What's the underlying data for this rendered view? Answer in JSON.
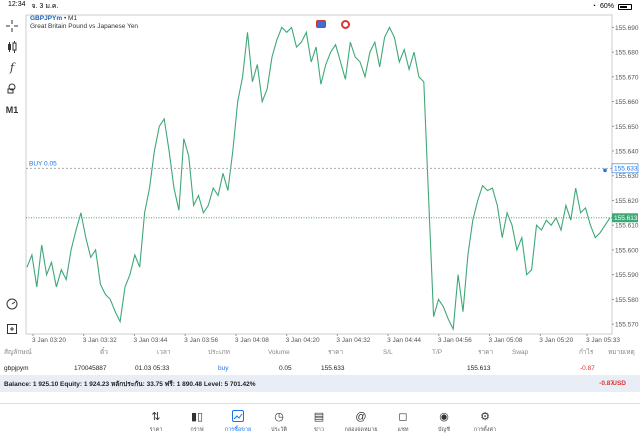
{
  "status": {
    "time": "12:34",
    "date": "จ. 3 ม.ค.",
    "battery": "60%"
  },
  "chart": {
    "symbol": "GBPJPYm",
    "timeframe": "• M1",
    "description": "Great Britain Pound vs Japanese Yen",
    "buy_label": "BUY 0.05",
    "current_price_label": "155.613",
    "buy_price_label": "155.633",
    "price_levels": [
      "155.690",
      "155.680",
      "155.670",
      "155.660",
      "155.650",
      "155.640",
      "155.630",
      "155.620",
      "155.610",
      "155.600",
      "155.590",
      "155.580",
      "155.570"
    ],
    "time_labels": [
      "3 Jan 03:20",
      "3 Jan 03:32",
      "3 Jan 03:44",
      "3 Jan 03:56",
      "3 Jan 04:08",
      "3 Jan 04:20",
      "3 Jan 04:32",
      "3 Jan 04:44",
      "3 Jan 04:56",
      "3 Jan 05:08",
      "3 Jan 05:20",
      "3 Jan 05:33"
    ],
    "timeframe_button": "M1",
    "line_color": "#3fa877",
    "buy_line_color": "#1a73e8"
  },
  "chart_data": {
    "type": "line",
    "ylim": [
      155.566,
      155.695
    ],
    "current_price": 155.613,
    "buy_price": 155.633,
    "series": [
      {
        "values": [
          155.593,
          155.598,
          155.585,
          155.602,
          155.59,
          155.595,
          155.585,
          155.592,
          155.588,
          155.6,
          155.608,
          155.615,
          155.605,
          155.597,
          155.6,
          155.586,
          155.582,
          155.58,
          155.575,
          155.571,
          155.585,
          155.59,
          155.598,
          155.593,
          155.615,
          155.625,
          155.64,
          155.65,
          155.653,
          155.64,
          155.625,
          155.616,
          155.645,
          155.638,
          155.618,
          155.622,
          155.615,
          155.618,
          155.625,
          155.622,
          155.631,
          155.624,
          155.64,
          155.66,
          155.67,
          155.688,
          155.668,
          155.675,
          155.66,
          155.665,
          155.678,
          155.685,
          155.69,
          155.688,
          155.69,
          155.682,
          155.684,
          155.688,
          155.676,
          155.682,
          155.667,
          155.675,
          155.68,
          155.683,
          155.676,
          155.669,
          155.684,
          155.678,
          155.676,
          155.67,
          155.68,
          155.684,
          155.674,
          155.686,
          155.69,
          155.686,
          155.676,
          155.681,
          155.673,
          155.68,
          155.67,
          155.668,
          155.62,
          155.573,
          155.58,
          155.577,
          155.572,
          155.568,
          155.59,
          155.575,
          155.598,
          155.612,
          155.62,
          155.626,
          155.624,
          155.625,
          155.618,
          155.605,
          155.615,
          155.61,
          155.6,
          155.605,
          155.59,
          155.592,
          155.61,
          155.608,
          155.612,
          155.61,
          155.613,
          155.608,
          155.618,
          155.612,
          155.625,
          155.615,
          155.617,
          155.61,
          155.605,
          155.607,
          155.61,
          155.613
        ]
      }
    ]
  },
  "table": {
    "headers": [
      "สัญลักษณ์",
      "ตั๋ว",
      "เวลา",
      "ประเภท",
      "Volume",
      "ราคา",
      "S/L",
      "T/P",
      "ราคา",
      "Swap",
      "กำไร",
      "หมายเหตุ"
    ],
    "rows": [
      {
        "symbol": "gbpjpym",
        "ticket": "170045887",
        "time": "01.03 05:33",
        "type": "buy",
        "volume": "0.05",
        "open_price": "155.633",
        "sl": "",
        "tp": "",
        "price": "155.613",
        "swap": "",
        "profit": "-0.87",
        "comment": ""
      }
    ],
    "balance_text": "Balance: 1 925.10 Equity: 1 924.23 หลักประกัน: 33.75 ฟรี: 1 890.48 Level: 5 701.42%",
    "balance_profit": "-0.87",
    "currency": "USD"
  },
  "nav": [
    {
      "label": "ราคา",
      "icon": "arrows-updown-icon"
    },
    {
      "label": "กราฟ",
      "icon": "candles-icon"
    },
    {
      "label": "การซื้อขาย",
      "icon": "chart-trend-icon",
      "active": true
    },
    {
      "label": "ประวัติ",
      "icon": "history-icon"
    },
    {
      "label": "ข่าว",
      "icon": "news-icon"
    },
    {
      "label": "กล่องจดหมาย",
      "icon": "at-icon"
    },
    {
      "label": "แชท",
      "icon": "chat-icon"
    },
    {
      "label": "บัญชี",
      "icon": "account-icon"
    },
    {
      "label": "การตั้งค่า",
      "icon": "gear-icon"
    }
  ]
}
